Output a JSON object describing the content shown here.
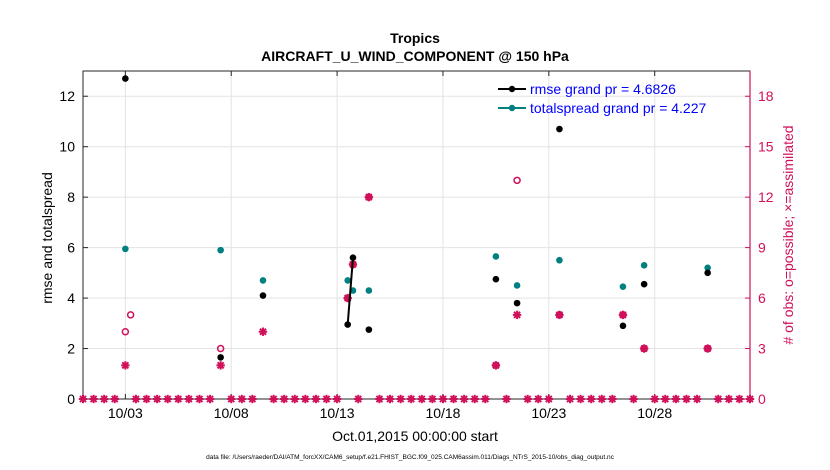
{
  "chart_data": {
    "type": "scatter",
    "title": "Tropics",
    "subtitle": "AIRCRAFT_U_WIND_COMPONENT @ 150 hPa",
    "xlabel": "Oct.01,2015 00:00:00 start",
    "ylabel": "rmse and totalspread",
    "y2label": "# of obs: o=possible; ×=assimilated",
    "footnote": "data file: /Users/raeder/DAI/ATM_forcXX/CAM6_setup/f.e21.FHIST_BGC.f09_025.CAM6assim.011/Diags_NTrS_2015-10/obs_diag_output.nc",
    "xlim": [
      1.0,
      32.5
    ],
    "ylim": [
      0,
      13
    ],
    "y2lim": [
      0,
      19.5
    ],
    "x_ticks": [
      3,
      8,
      13,
      18,
      23,
      28
    ],
    "x_tick_labels": [
      "10/03",
      "10/08",
      "10/13",
      "10/18",
      "10/23",
      "10/28"
    ],
    "y_ticks": [
      0,
      2,
      4,
      6,
      8,
      10,
      12
    ],
    "y2_ticks": [
      0,
      3,
      6,
      9,
      12,
      15,
      18
    ],
    "grid": true,
    "legend_position": "top-right",
    "colors": {
      "rmse": "#000000",
      "spread": "#008080",
      "obs": "#d0105a",
      "legend_text": "#0000ff"
    },
    "series": [
      {
        "name": "rmse grand pr = 4.6826",
        "axis": "left",
        "x": [
          3.0,
          7.5,
          9.5,
          13.5,
          13.75,
          14.5,
          20.5,
          21.5,
          23.5,
          26.5,
          27.5,
          30.5
        ],
        "y": [
          12.7,
          1.65,
          4.1,
          2.95,
          5.6,
          2.75,
          4.75,
          3.8,
          10.7,
          2.9,
          4.55,
          5.0
        ]
      },
      {
        "name": "totalspread grand pr = 4.227",
        "axis": "left",
        "x": [
          3.0,
          7.5,
          9.5,
          13.5,
          13.75,
          14.5,
          20.5,
          21.5,
          23.5,
          26.5,
          27.5,
          30.5
        ],
        "y": [
          5.95,
          5.9,
          4.7,
          4.7,
          4.3,
          4.3,
          5.65,
          4.5,
          5.5,
          4.45,
          5.3,
          5.2
        ]
      },
      {
        "name": "obs possible",
        "axis": "right",
        "x": [
          3.0,
          3.25,
          7.5,
          13.5,
          13.75,
          14.5,
          20.5,
          21.5,
          23.5,
          26.5,
          27.5,
          30.5
        ],
        "y": [
          4,
          5,
          3,
          6,
          8,
          12,
          2,
          13,
          5,
          5,
          3,
          3
        ]
      },
      {
        "name": "obs assimilated",
        "axis": "right",
        "x": [
          3.0,
          7.5,
          9.5,
          13.5,
          13.75,
          14.5,
          20.5,
          21.5,
          23.5,
          26.5,
          27.5,
          30.5
        ],
        "y": [
          2,
          2,
          4,
          6,
          8,
          12,
          2,
          5,
          5,
          5,
          3,
          3
        ]
      }
    ],
    "rmse_connected_segment": [
      [
        13.5,
        2.95
      ],
      [
        13.75,
        5.6
      ]
    ]
  }
}
